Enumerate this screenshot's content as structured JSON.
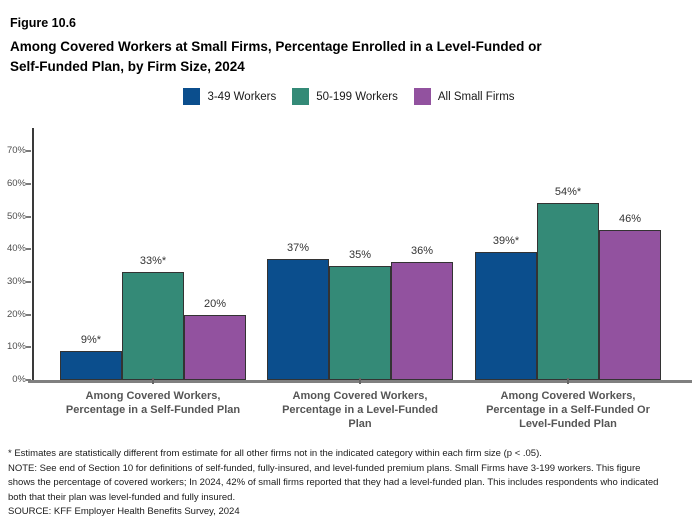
{
  "figure": {
    "number": "Figure 10.6",
    "title": "Among Covered Workers at Small Firms, Percentage Enrolled in a Level-Funded or\nSelf-Funded Plan, by Firm Size, 2024"
  },
  "footnotes": {
    "asterisk": "* Estimates are statistically different from estimate for all other firms not in the indicated category within each firm size (p < .05).",
    "note": "NOTE: See end of Section 10 for definitions of self-funded, fully-insured, and level-funded premium plans. Small Firms have 3-199 workers. This figure shows the percentage of covered workers; In 2024, 42% of small firms reported that they had a level-funded plan. This includes respondents who indicated both that their plan was level-funded and fully insured.",
    "source": "SOURCE: KFF Employer Health Benefits Survey, 2024"
  },
  "chart_data": {
    "type": "bar",
    "categories": [
      "Among Covered Workers,\nPercentage in a Self-Funded Plan",
      "Among Covered Workers,\nPercentage in a Level-Funded\nPlan",
      "Among Covered Workers,\nPercentage in a Self-Funded Or\nLevel-Funded Plan"
    ],
    "series": [
      {
        "name": "3-49 Workers",
        "color": "#0b4e8d",
        "values": [
          9,
          37,
          39
        ],
        "labels": [
          "9%*",
          "37%",
          "39%*"
        ]
      },
      {
        "name": "50-199 Workers",
        "color": "#348a77",
        "values": [
          33,
          35,
          54
        ],
        "labels": [
          "33%*",
          "35%",
          "54%*"
        ]
      },
      {
        "name": "All Small Firms",
        "color": "#92529f",
        "values": [
          20,
          36,
          46
        ],
        "labels": [
          "20%",
          "36%",
          "46%"
        ]
      }
    ],
    "xlabel": "",
    "ylabel": "",
    "ylim": [
      0,
      77
    ],
    "yticks": [
      "0%",
      "10%",
      "20%",
      "30%",
      "40%",
      "50%",
      "60%",
      "70%"
    ],
    "grid": false,
    "legend_position": "top-center",
    "bar_outline_color": "#333333",
    "axis_color": "#808080"
  }
}
